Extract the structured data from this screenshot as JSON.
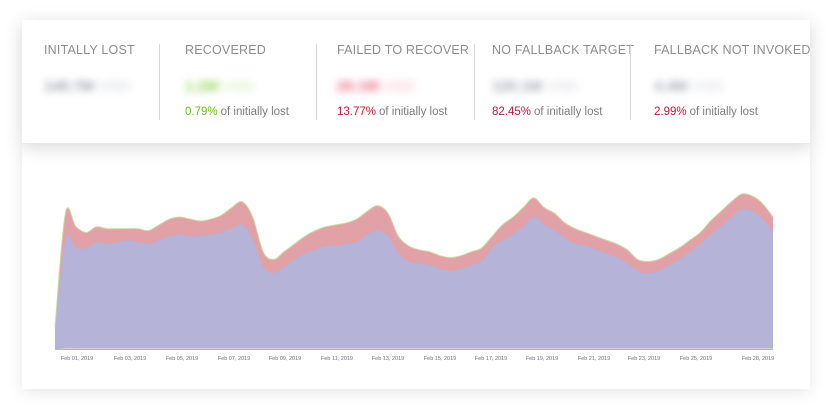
{
  "stats": [
    {
      "label": "INITALLY LOST",
      "value": "145.7M",
      "unit": "USD",
      "value_color": "#9a9ea8",
      "pct": "",
      "pct_color": "",
      "suffix": ""
    },
    {
      "label": "RECOVERED",
      "value": "1.2M",
      "unit": "USD",
      "value_color": "#8ed14a",
      "pct": "0.79%",
      "pct_color": "#6cbf1a",
      "suffix": "of initially lost"
    },
    {
      "label": "FAILED TO RECOVER",
      "value": "20.1M",
      "unit": "USD",
      "value_color": "#e8647c",
      "pct": "13.77%",
      "pct_color": "#c4163a",
      "suffix": "of initially lost"
    },
    {
      "label": "NO FALLBACK TARGET",
      "value": "120.1M",
      "unit": "USD",
      "value_color": "#a0a4ae",
      "pct": "82.45%",
      "pct_color": "#c4163a",
      "suffix": "of initially lost"
    },
    {
      "label": "FALLBACK NOT INVOKED",
      "value": "4.4M",
      "unit": "USD",
      "value_color": "#a0a4ae",
      "pct": "2.99%",
      "pct_color": "#c4163a",
      "suffix": "of initially lost"
    }
  ],
  "chart_data": {
    "type": "area",
    "stacked": true,
    "x_tick_labels": [
      "Feb 01, 2019",
      "Feb 03, 2019",
      "Feb 05, 2019",
      "Feb 07, 2019",
      "Feb 09, 2019",
      "Feb 11, 2019",
      "Feb 13, 2019",
      "Feb 15, 2019",
      "Feb 17, 2019",
      "Feb 19, 2019",
      "Feb 21, 2019",
      "Feb 23, 2019",
      "Feb 25, 2019",
      "Feb 28, 2019"
    ],
    "y_tick_labels": [
      "",
      "",
      "",
      "",
      ""
    ],
    "ylim": [
      0,
      8
    ],
    "grid": false,
    "series": [
      {
        "key": "recovered",
        "color": "#9ccf6e",
        "values": [
          0.0,
          0.05,
          0.05,
          0.05,
          0.05,
          0.05,
          0.05,
          0.05,
          0.05,
          0.05,
          0.05,
          0.05,
          0.05,
          0.05,
          0.05,
          0.05,
          0.05,
          0.05,
          0.05,
          0.05,
          0.05,
          0.05,
          0.05,
          0.05,
          0.05,
          0.05,
          0.05,
          0.05,
          0.05,
          0.05,
          0.05,
          0.05,
          0.05,
          0.05,
          0.05,
          0.05,
          0.05,
          0.05,
          0.05,
          0.05,
          0.05,
          0.05,
          0.05,
          0.05,
          0.05,
          0.05,
          0.05,
          0.05,
          0.05,
          0.05,
          0.05,
          0.05,
          0.05,
          0.05,
          0.05,
          0.05,
          0.05,
          0.05,
          0.05,
          0.05,
          0.05,
          0.05,
          0.05,
          0.05,
          0.05,
          0.05,
          0.05,
          0.05,
          0.05,
          0.05
        ]
      },
      {
        "key": "fallback_not_invoked",
        "color": "#d4d4d4",
        "values": [
          0.0,
          0.05,
          0.05,
          0.05,
          0.05,
          0.05,
          0.05,
          0.05,
          0.05,
          0.05,
          0.05,
          0.05,
          0.05,
          0.05,
          0.05,
          0.05,
          0.05,
          0.05,
          0.05,
          0.05,
          0.05,
          0.05,
          0.05,
          0.05,
          0.05,
          0.05,
          0.05,
          0.05,
          0.05,
          0.05,
          0.05,
          0.05,
          0.05,
          0.05,
          0.05,
          0.05,
          0.05,
          0.05,
          0.05,
          0.05,
          0.05,
          0.05,
          0.05,
          0.05,
          0.05,
          0.05,
          0.05,
          0.05,
          0.05,
          0.05,
          0.05,
          0.05,
          0.05,
          0.05,
          0.05,
          0.05,
          0.05,
          0.05,
          0.05,
          0.05,
          0.05,
          0.05,
          0.05,
          0.05,
          0.05,
          0.05,
          0.05,
          0.05,
          0.05,
          0.05
        ]
      },
      {
        "key": "no_fallback_target",
        "color": "#b5b3d8",
        "values": [
          1.0,
          5.6,
          5.2,
          5.2,
          5.5,
          5.4,
          5.5,
          5.6,
          5.5,
          5.4,
          5.6,
          5.8,
          5.9,
          5.8,
          5.8,
          5.9,
          6.0,
          6.2,
          6.4,
          5.6,
          4.2,
          3.9,
          4.2,
          4.6,
          4.9,
          5.1,
          5.3,
          5.3,
          5.4,
          5.5,
          5.9,
          6.1,
          5.8,
          4.9,
          4.5,
          4.4,
          4.3,
          4.1,
          4.0,
          4.1,
          4.3,
          4.5,
          5.2,
          5.6,
          5.9,
          6.3,
          6.8,
          6.4,
          6.1,
          5.7,
          5.4,
          5.3,
          5.1,
          4.9,
          4.7,
          4.4,
          4.0,
          3.9,
          4.0,
          4.3,
          4.6,
          5.0,
          5.4,
          5.9,
          6.3,
          6.8,
          7.2,
          7.1,
          6.7,
          6.0
        ]
      },
      {
        "key": "failed_to_recover",
        "color": "#e2a1a6",
        "values": [
          0.2,
          1.4,
          1.1,
          0.8,
          0.8,
          0.8,
          0.7,
          0.6,
          0.7,
          0.7,
          0.8,
          0.9,
          0.9,
          0.9,
          0.8,
          0.8,
          0.9,
          1.1,
          1.2,
          1.2,
          0.8,
          0.7,
          0.8,
          0.8,
          0.9,
          1.0,
          1.0,
          1.1,
          1.1,
          1.2,
          1.2,
          1.3,
          1.2,
          0.9,
          0.8,
          0.7,
          0.7,
          0.7,
          0.7,
          0.7,
          0.7,
          0.7,
          0.6,
          0.8,
          0.9,
          1.0,
          1.0,
          0.9,
          0.9,
          0.8,
          0.8,
          0.7,
          0.7,
          0.7,
          0.7,
          0.7,
          0.6,
          0.6,
          0.6,
          0.6,
          0.6,
          0.6,
          0.6,
          0.7,
          0.8,
          0.8,
          0.8,
          0.8,
          0.8,
          0.8
        ]
      }
    ]
  }
}
